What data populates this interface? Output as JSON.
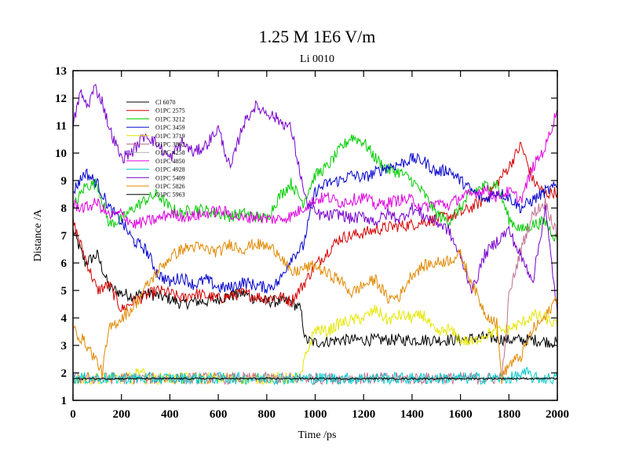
{
  "chart_data": {
    "type": "line",
    "title": "1.25 M 1E6 V/m",
    "subtitle": "Li 0010",
    "xlabel": "Time /ps",
    "ylabel": "Distance /A",
    "xlim": [
      0,
      2000
    ],
    "ylim": [
      1,
      13
    ],
    "xticks": [
      0,
      200,
      400,
      600,
      800,
      1000,
      1200,
      1400,
      1600,
      1800,
      2000
    ],
    "yticks": [
      1,
      2,
      3,
      4,
      5,
      6,
      7,
      8,
      9,
      10,
      11,
      12,
      13
    ],
    "legend_position": "top-left",
    "series": [
      {
        "name": "Cl 6070",
        "color": "#000000",
        "x": [
          0,
          50,
          100,
          150,
          200,
          250,
          300,
          350,
          400,
          450,
          500,
          550,
          600,
          650,
          700,
          750,
          800,
          850,
          900,
          940,
          960,
          1000,
          1100,
          1200,
          1300,
          1400,
          1500,
          1600,
          1700,
          1800,
          1900,
          2000
        ],
        "y": [
          7.2,
          6.0,
          6.3,
          5.1,
          4.9,
          4.8,
          4.9,
          4.8,
          4.7,
          4.5,
          4.6,
          4.6,
          4.7,
          4.8,
          4.9,
          4.7,
          4.6,
          4.6,
          4.6,
          4.3,
          3.2,
          3.1,
          3.2,
          3.2,
          3.2,
          3.2,
          3.2,
          3.2,
          3.3,
          3.2,
          3.2,
          3.1
        ]
      },
      {
        "name": "O1PC 2575",
        "color": "#d40000",
        "x": [
          0,
          50,
          100,
          150,
          200,
          250,
          300,
          350,
          400,
          450,
          500,
          550,
          600,
          650,
          700,
          750,
          800,
          850,
          900,
          950,
          1000,
          1050,
          1100,
          1200,
          1300,
          1400,
          1500,
          1600,
          1700,
          1750,
          1800,
          1850,
          1900,
          1950,
          2000
        ],
        "y": [
          7.5,
          6.2,
          5.0,
          5.2,
          4.3,
          4.6,
          4.8,
          5.0,
          4.9,
          4.7,
          4.9,
          4.8,
          4.7,
          4.8,
          4.9,
          4.8,
          4.7,
          4.8,
          4.6,
          5.2,
          5.9,
          6.4,
          6.9,
          7.1,
          7.3,
          7.4,
          7.6,
          7.8,
          8.3,
          8.9,
          9.5,
          10.3,
          9.0,
          8.5,
          8.6
        ]
      },
      {
        "name": "O1PC 3212",
        "color": "#00cc00",
        "x": [
          0,
          50,
          100,
          150,
          200,
          250,
          300,
          350,
          400,
          450,
          500,
          550,
          600,
          650,
          700,
          750,
          800,
          850,
          900,
          950,
          1000,
          1050,
          1100,
          1150,
          1200,
          1250,
          1300,
          1350,
          1400,
          1450,
          1500,
          1550,
          1600,
          1650,
          1700,
          1750,
          1800,
          1850,
          1900,
          1950,
          2000
        ],
        "y": [
          8.0,
          8.8,
          8.9,
          7.4,
          7.6,
          8.0,
          8.3,
          8.5,
          8.0,
          7.8,
          8.0,
          7.9,
          7.8,
          7.7,
          7.8,
          7.7,
          7.6,
          8.4,
          8.9,
          8.2,
          9.2,
          9.5,
          10.1,
          10.6,
          10.4,
          9.8,
          9.4,
          9.3,
          9.0,
          8.5,
          7.8,
          7.5,
          8.0,
          8.6,
          8.8,
          8.9,
          7.6,
          7.2,
          7.4,
          7.5,
          6.8
        ]
      },
      {
        "name": "O1PC 3459",
        "color": "#0000cc",
        "x": [
          0,
          50,
          100,
          150,
          200,
          250,
          300,
          350,
          400,
          450,
          500,
          550,
          600,
          650,
          700,
          750,
          800,
          850,
          900,
          950,
          1000,
          1050,
          1100,
          1150,
          1200,
          1250,
          1300,
          1350,
          1400,
          1450,
          1500,
          1550,
          1600,
          1650,
          1700,
          1750,
          1800,
          1850,
          1900,
          1950,
          2000
        ],
        "y": [
          8.6,
          9.3,
          8.9,
          8.0,
          7.5,
          6.8,
          6.5,
          5.6,
          5.3,
          5.5,
          5.2,
          5.4,
          5.1,
          5.1,
          5.3,
          5.2,
          5.1,
          5.3,
          6.2,
          6.6,
          8.6,
          8.9,
          9.0,
          9.2,
          9.1,
          9.3,
          9.5,
          9.6,
          9.8,
          9.7,
          9.3,
          9.4,
          9.0,
          8.6,
          8.3,
          8.6,
          8.4,
          8.0,
          8.3,
          8.6,
          8.8
        ]
      },
      {
        "name": "O1PC 3719",
        "color": "#e6e600",
        "x": [
          0,
          100,
          200,
          250,
          280,
          300,
          350,
          400,
          500,
          600,
          700,
          800,
          900,
          940,
          960,
          1000,
          1050,
          1100,
          1150,
          1200,
          1250,
          1300,
          1350,
          1400,
          1450,
          1500,
          1550,
          1600,
          1650,
          1700,
          1750,
          1800,
          1850,
          1900,
          1950,
          2000
        ],
        "y": [
          1.8,
          1.8,
          1.8,
          1.8,
          2.2,
          1.8,
          1.8,
          1.8,
          1.8,
          1.8,
          1.8,
          1.8,
          1.8,
          1.8,
          2.6,
          3.6,
          3.5,
          3.8,
          3.9,
          4.0,
          4.3,
          3.9,
          4.1,
          4.0,
          4.1,
          3.4,
          3.6,
          3.2,
          3.1,
          3.4,
          3.5,
          3.6,
          3.8,
          4.1,
          4.0,
          3.7
        ]
      },
      {
        "name": "O1PC 3862",
        "color": "#c07090",
        "x": [
          0,
          100,
          200,
          300,
          400,
          500,
          600,
          700,
          800,
          900,
          1000,
          1100,
          1200,
          1300,
          1400,
          1500,
          1600,
          1700,
          1760,
          1780,
          1800,
          1850,
          1900,
          1950,
          2000
        ],
        "y": [
          1.8,
          1.8,
          1.8,
          1.8,
          1.8,
          1.8,
          1.8,
          1.8,
          1.8,
          1.8,
          1.8,
          1.8,
          1.8,
          1.8,
          1.8,
          1.8,
          1.8,
          1.8,
          1.8,
          2.4,
          4.8,
          6.5,
          7.8,
          8.2,
          7.0
        ]
      },
      {
        "name": "O1PC 4258",
        "color": "#b0b0b0",
        "x": [
          0,
          200,
          400,
          600,
          800,
          1000,
          1200,
          1400,
          1600,
          1800,
          2000
        ],
        "y": [
          1.82,
          1.82,
          1.81,
          1.82,
          1.81,
          1.82,
          1.82,
          1.81,
          1.82,
          1.82,
          1.81
        ]
      },
      {
        "name": "O1PC 4850",
        "color": "#e000e0",
        "x": [
          0,
          50,
          100,
          150,
          200,
          250,
          300,
          350,
          400,
          450,
          500,
          550,
          600,
          650,
          700,
          750,
          800,
          850,
          900,
          950,
          1000,
          1050,
          1100,
          1150,
          1200,
          1250,
          1300,
          1350,
          1400,
          1450,
          1500,
          1550,
          1600,
          1650,
          1700,
          1750,
          1800,
          1850,
          1900,
          1950,
          2000
        ],
        "y": [
          8.1,
          8.0,
          8.2,
          7.7,
          7.8,
          7.4,
          7.5,
          7.6,
          7.8,
          7.7,
          7.7,
          7.8,
          7.9,
          7.8,
          7.6,
          7.7,
          7.6,
          7.6,
          7.7,
          8.0,
          8.3,
          8.4,
          8.2,
          8.3,
          8.4,
          8.1,
          8.2,
          8.3,
          8.3,
          8.0,
          8.2,
          8.1,
          8.4,
          8.5,
          8.7,
          8.4,
          8.6,
          8.3,
          9.5,
          10.2,
          11.6
        ]
      },
      {
        "name": "O1PC 4928",
        "color": "#00cccc",
        "x": [
          0,
          200,
          400,
          600,
          800,
          1000,
          1200,
          1400,
          1600,
          1800,
          1880,
          1900,
          2000
        ],
        "y": [
          1.8,
          1.8,
          1.8,
          1.8,
          1.8,
          1.8,
          1.8,
          1.8,
          1.8,
          1.8,
          2.0,
          1.8,
          1.8
        ]
      },
      {
        "name": "O1PC 5409",
        "color": "#7700cc",
        "x": [
          0,
          30,
          60,
          90,
          120,
          150,
          200,
          250,
          300,
          350,
          400,
          450,
          500,
          550,
          600,
          650,
          700,
          750,
          800,
          850,
          900,
          940,
          960,
          1000,
          1050,
          1100,
          1150,
          1200,
          1250,
          1300,
          1350,
          1400,
          1450,
          1500,
          1550,
          1600,
          1650,
          1700,
          1750,
          1800,
          1850,
          1900,
          1950,
          2000
        ],
        "y": [
          11.0,
          12.2,
          11.7,
          12.4,
          11.9,
          10.9,
          9.8,
          10.1,
          10.7,
          10.3,
          9.8,
          10.4,
          10.0,
          10.3,
          10.9,
          9.4,
          11.0,
          11.7,
          11.5,
          11.2,
          10.9,
          9.2,
          8.3,
          7.8,
          7.7,
          7.8,
          7.6,
          7.7,
          7.5,
          7.8,
          7.6,
          8.0,
          7.7,
          7.5,
          7.2,
          6.2,
          5.0,
          6.3,
          6.8,
          7.2,
          6.2,
          5.4,
          8.0,
          4.2
        ]
      },
      {
        "name": "O1PC 5826",
        "color": "#e08800",
        "x": [
          0,
          50,
          100,
          120,
          150,
          200,
          250,
          300,
          350,
          400,
          450,
          500,
          550,
          600,
          650,
          700,
          750,
          800,
          850,
          900,
          950,
          1000,
          1050,
          1100,
          1150,
          1200,
          1250,
          1300,
          1350,
          1400,
          1450,
          1500,
          1550,
          1600,
          1650,
          1700,
          1750,
          1770,
          1800,
          1850,
          1900,
          1950,
          2000
        ],
        "y": [
          3.6,
          3.1,
          2.4,
          2.0,
          3.6,
          4.0,
          4.4,
          5.1,
          5.7,
          6.2,
          6.5,
          6.6,
          6.5,
          6.4,
          6.7,
          6.5,
          6.7,
          6.6,
          6.4,
          5.6,
          5.8,
          5.9,
          5.6,
          5.4,
          4.9,
          5.2,
          5.4,
          4.7,
          4.8,
          5.6,
          5.9,
          6.0,
          6.1,
          6.3,
          5.2,
          4.2,
          3.8,
          1.8,
          2.3,
          2.6,
          3.6,
          4.0,
          4.8
        ]
      },
      {
        "name": "O1PC 5963",
        "color": "#000000",
        "x": [
          0,
          200,
          400,
          600,
          800,
          1000,
          1200,
          1400,
          1600,
          1800,
          2000
        ],
        "y": [
          1.79,
          1.79,
          1.79,
          1.79,
          1.79,
          1.79,
          1.79,
          1.79,
          1.79,
          1.79,
          1.79
        ]
      }
    ]
  }
}
